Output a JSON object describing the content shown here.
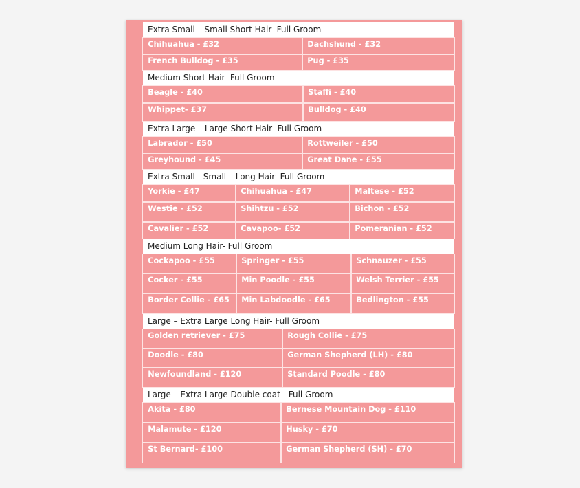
{
  "sections": [
    {
      "title": "Extra Small – Small Short Hair- Full Groom",
      "rows": [
        [
          "Chihuahua - £32",
          "Dachshund - £32"
        ],
        [
          "French Bulldog - £35",
          "Pug - £35"
        ]
      ]
    },
    {
      "title": "Medium Short Hair- Full Groom",
      "rows": [
        [
          "Beagle - £40",
          "Staffi - £40"
        ],
        [
          "Whippet- £37",
          "Bulldog - £40"
        ]
      ]
    },
    {
      "title": "Extra Large – Large Short Hair- Full Groom",
      "rows": [
        [
          "Labrador - £50",
          "Rottweiler - £50"
        ],
        [
          "Greyhound - £45",
          "Great Dane - £55"
        ]
      ]
    },
    {
      "title": "Extra Small - Small – Long Hair- Full Groom",
      "rows": [
        [
          "Yorkie - £47",
          "Chihuahua - £47",
          "Maltese - £52"
        ],
        [
          "Westie - £52",
          "Shihtzu - £52",
          "Bichon - £52"
        ],
        [
          "Cavalier - £52",
          "Cavapoo- £52",
          "Pomeranian - £52"
        ]
      ]
    },
    {
      "title": "Medium Long Hair- Full Groom",
      "rows": [
        [
          "Cockapoo - £55",
          "Springer - £55",
          "Schnauzer - £55"
        ],
        [
          "Cocker - £55",
          "Min Poodle - £55",
          "Welsh Terrier - £55"
        ],
        [
          "Border Collie - £65",
          "Min Labdoodle - £65",
          "Bedlington - £55"
        ]
      ]
    },
    {
      "title": "Large – Extra Large Long Hair- Full Groom",
      "rows": [
        [
          "Golden retriever - £75",
          "Rough Collie - £75"
        ],
        [
          "Doodle - £80",
          "German Shepherd (LH) - £80"
        ],
        [
          "Newfoundland - £120",
          "Standard Poodle - £80"
        ]
      ]
    },
    {
      "title": "Large – Extra Large Double coat - Full Groom",
      "rows": [
        [
          "Akita - £80",
          "Bernese Mountain Dog - £110"
        ],
        [
          "Malamute - £120",
          "Husky - £70"
        ],
        [
          "St Bernard- £100",
          "German Shepherd (SH)  - £70"
        ]
      ]
    }
  ],
  "colors": {
    "cell_background": "#f4999a",
    "header_background": "#ffffff",
    "cell_text": "#ffffff"
  }
}
